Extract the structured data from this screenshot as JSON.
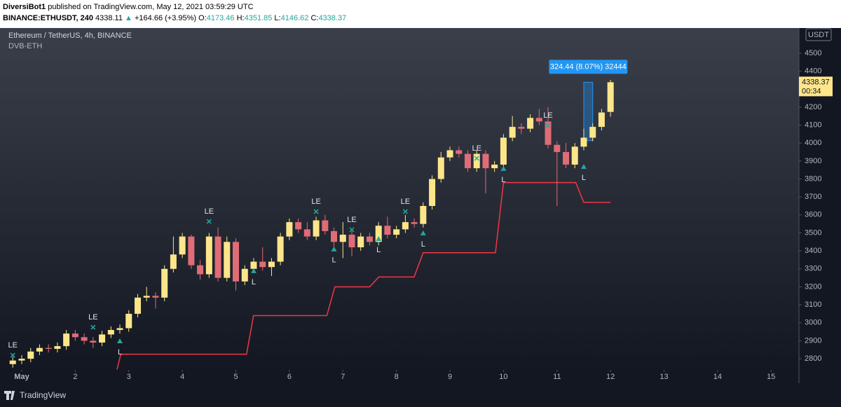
{
  "header": {
    "publisher": "DiversiBot1",
    "published": "published on TradingView.com, May 12, 2021 03:59:29 UTC",
    "symbol": "BINANCE:ETHUSDT, 240",
    "last": "4338.11",
    "arrow": "▲",
    "change": "+164.66 (+3.95%)",
    "ohlc": [
      {
        "k": "O:",
        "v": "4173.46"
      },
      {
        "k": "H:",
        "v": "4351.85"
      },
      {
        "k": "L:",
        "v": "4146.62"
      },
      {
        "k": "C:",
        "v": "4338.37"
      }
    ]
  },
  "footer": {
    "brand": "TradingView"
  },
  "chart_data": {
    "type": "candlestick",
    "title": "Ethereum / TetherUS, 4h, BINANCE",
    "subtitle": "DVB-ETH",
    "currency": "USDT",
    "price_label": "4338.37",
    "countdown": "00:34",
    "up_color": "#fde68a",
    "down_color": "#e06c75",
    "grid": false,
    "x": [
      0.833,
      1,
      1.167,
      1.333,
      1.5,
      1.667,
      1.833,
      2,
      2.167,
      2.333,
      2.5,
      2.667,
      2.833,
      3,
      3.167,
      3.333,
      3.5,
      3.667,
      3.833,
      4,
      4.167,
      4.333,
      4.5,
      4.667,
      4.833,
      5,
      5.167,
      5.333,
      5.5,
      5.667,
      5.833,
      6,
      6.167,
      6.333,
      6.5,
      6.667,
      6.833,
      7,
      7.167,
      7.333,
      7.5,
      7.667,
      7.833,
      8,
      8.167,
      8.333,
      8.5,
      8.667,
      8.833,
      9,
      9.167,
      9.333,
      9.5,
      9.667,
      9.833,
      10,
      10.167,
      10.333,
      10.5,
      10.667,
      10.833,
      11,
      11.167,
      11.333,
      11.5,
      11.667,
      11.833,
      12
    ],
    "open": [
      2770,
      2790,
      2800,
      2840,
      2860,
      2855,
      2870,
      2940,
      2920,
      2900,
      2890,
      2935,
      2960,
      2970,
      3050,
      3140,
      3150,
      3140,
      3300,
      3380,
      3480,
      3320,
      3270,
      3480,
      3250,
      3450,
      3230,
      3300,
      3340,
      3310,
      3340,
      3480,
      3560,
      3520,
      3480,
      3570,
      3510,
      3450,
      3490,
      3420,
      3480,
      3450,
      3540,
      3490,
      3520,
      3560,
      3550,
      3650,
      3800,
      3920,
      3960,
      3940,
      3860,
      3940,
      3860,
      3880,
      4030,
      4090,
      4080,
      4140,
      4120,
      3990,
      3950,
      3880,
      3980,
      4030,
      4090,
      4173.46
    ],
    "high": [
      2810,
      2820,
      2860,
      2880,
      2880,
      2890,
      2960,
      2960,
      2940,
      2920,
      2955,
      2980,
      2990,
      3070,
      3160,
      3200,
      3170,
      3320,
      3480,
      3500,
      3490,
      3350,
      3500,
      3530,
      3480,
      3470,
      3320,
      3360,
      3420,
      3360,
      3500,
      3580,
      3580,
      3560,
      3590,
      3600,
      3530,
      3560,
      3510,
      3500,
      3500,
      3560,
      3590,
      3540,
      3600,
      3580,
      3670,
      3820,
      3950,
      3980,
      3980,
      3960,
      3960,
      3960,
      3900,
      4050,
      4150,
      4110,
      4160,
      4190,
      4200,
      4010,
      4000,
      4000,
      4080,
      4110,
      4190,
      4351.85
    ],
    "low": [
      2750,
      2770,
      2780,
      2820,
      2835,
      2835,
      2850,
      2900,
      2880,
      2860,
      2870,
      2915,
      2940,
      2950,
      3030,
      3120,
      3080,
      3120,
      3280,
      3360,
      3300,
      3240,
      3250,
      3230,
      3230,
      3180,
      3210,
      3280,
      3290,
      3260,
      3320,
      3460,
      3500,
      3460,
      3460,
      3490,
      3400,
      3360,
      3370,
      3400,
      3430,
      3430,
      3470,
      3470,
      3500,
      3530,
      3530,
      3630,
      3780,
      3900,
      3920,
      3840,
      3840,
      3720,
      3840,
      3860,
      4010,
      4050,
      4060,
      4100,
      3970,
      3650,
      3860,
      3860,
      3960,
      4010,
      4070,
      4146.62
    ],
    "close": [
      2790,
      2800,
      2840,
      2860,
      2855,
      2870,
      2940,
      2920,
      2900,
      2890,
      2935,
      2960,
      2970,
      3050,
      3140,
      3150,
      3140,
      3300,
      3380,
      3480,
      3320,
      3270,
      3480,
      3250,
      3450,
      3230,
      3300,
      3340,
      3310,
      3340,
      3480,
      3560,
      3520,
      3480,
      3570,
      3510,
      3450,
      3490,
      3420,
      3480,
      3450,
      3540,
      3490,
      3520,
      3560,
      3550,
      3650,
      3800,
      3920,
      3960,
      3940,
      3860,
      3940,
      3860,
      3880,
      4030,
      4090,
      4080,
      4140,
      4120,
      3990,
      3950,
      3880,
      3980,
      4030,
      4090,
      4170,
      4338.37
    ],
    "stop": {
      "color": "#f23645",
      "x": [
        2.78,
        2.85,
        5.2,
        5.33,
        6.7,
        6.85,
        7.5,
        7.67,
        8.33,
        8.5,
        9.85,
        10,
        11.35,
        11.5,
        12
      ],
      "values": [
        2740,
        2825,
        2825,
        3040,
        3040,
        3200,
        3200,
        3255,
        3255,
        3390,
        3390,
        3780,
        3780,
        3670,
        3670
      ]
    },
    "signals": [
      {
        "label": "LE",
        "marker": "cross",
        "color": "#26a69a",
        "x": [
          0.833,
          2.333,
          4.5,
          6.5,
          7.167,
          8.167,
          9.5,
          10.833
        ],
        "values": [
          2819,
          2975,
          3564,
          3619,
          3518,
          3619,
          3915,
          4098
        ]
      },
      {
        "label": "L",
        "marker": "triangle",
        "color": "#26a69a",
        "x": [
          2.833,
          5.333,
          6.833,
          7.667,
          8.5,
          10,
          11.5
        ],
        "values": [
          2898,
          3288,
          3409,
          3467,
          3498,
          3857,
          3868
        ]
      }
    ],
    "measure": {
      "label": "324.44 (8.07%) 32444",
      "x": [
        11.5,
        11.667
      ],
      "values": [
        4013.93,
        4338.37
      ],
      "color": "#2196f3"
    },
    "xlim": [
      0.594,
      15.52
    ],
    "ylim": [
      2738,
      4640
    ],
    "xticks": [
      {
        "value": 1,
        "label": "May"
      },
      2,
      3,
      4,
      5,
      6,
      7,
      8,
      9,
      10,
      11,
      12,
      13,
      14,
      15
    ],
    "yticks": [
      2800,
      2900,
      3000,
      3100,
      3200,
      3300,
      3400,
      3500,
      3600,
      3700,
      3800,
      3900,
      4000,
      4100,
      4200,
      4300,
      4400,
      4500
    ]
  }
}
